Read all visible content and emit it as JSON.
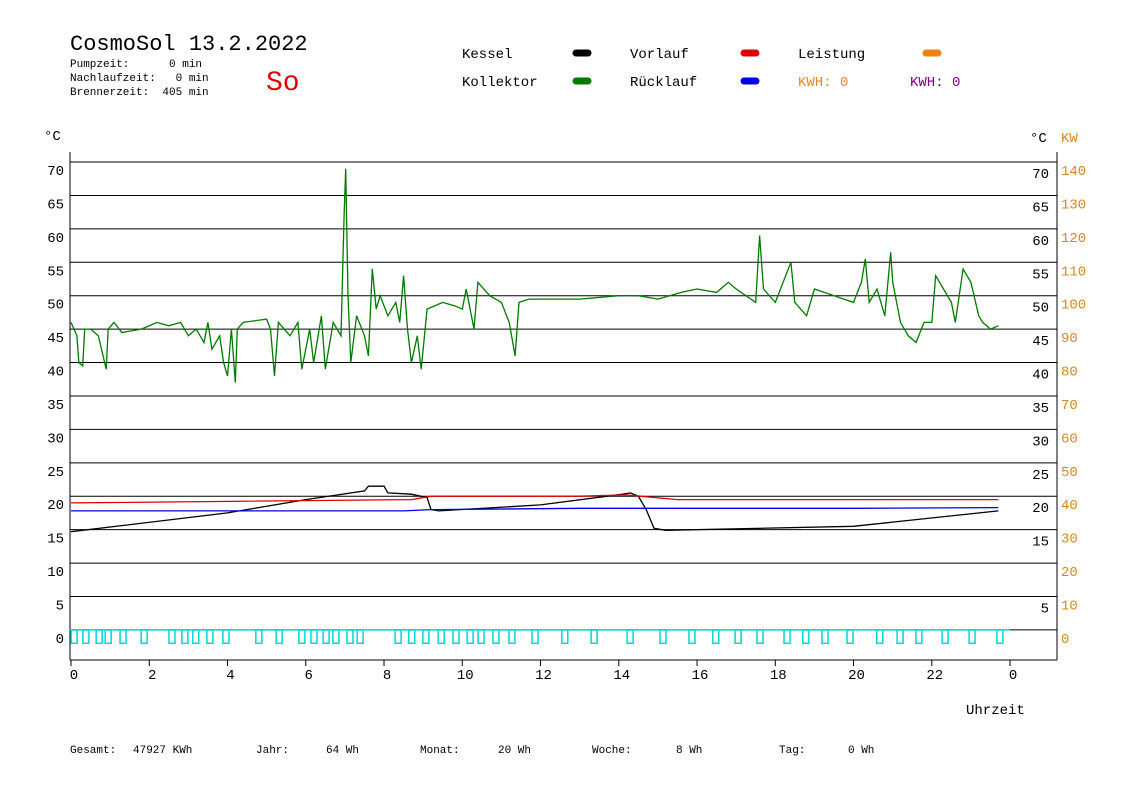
{
  "chart_data": {
    "type": "line",
    "title": "CosmoSol 13.2.2022",
    "info": [
      "Pumpzeit:      0 min",
      "Nachlaufzeit:   0 min",
      "Brennerzeit:  405 min"
    ],
    "day": "So",
    "y_label": "°C",
    "y_right_label": "°C",
    "y2_label": "KW",
    "x_label": "Uhrzeit",
    "kwh": [
      {
        "label": "KWH: 0",
        "color": "#e08a1e"
      },
      {
        "label": "KWH: 0",
        "color": "#800080"
      }
    ],
    "footer": [
      "Gesamt:",
      "47927 KWh",
      "Jahr:",
      "64 Wh",
      "Monat:",
      "20 Wh",
      "Woche:",
      "8 Wh",
      "Tag:",
      "0 Wh"
    ],
    "xlim": [
      0,
      25.2
    ],
    "xticks": [
      0,
      2,
      4,
      6,
      8,
      10,
      12,
      14,
      16,
      18,
      20,
      22,
      {
        "value": 24,
        "label": "0"
      }
    ],
    "ylim": [
      -4.5,
      71.5
    ],
    "yticks": [
      0,
      5,
      10,
      15,
      20,
      25,
      30,
      35,
      40,
      45,
      50,
      55,
      60,
      65,
      70
    ],
    "yticks_right": [
      5,
      15,
      20,
      25,
      30,
      35,
      40,
      45,
      50,
      55,
      60,
      65,
      70
    ],
    "y2lim": [
      -9,
      143
    ],
    "y2ticks": [
      0,
      10,
      20,
      30,
      40,
      50,
      60,
      70,
      80,
      90,
      100,
      110,
      120,
      130,
      140
    ],
    "grid": true,
    "series": [
      {
        "name": "Kessel",
        "color": "#000000",
        "x": [
          0,
          4,
          6,
          7.5,
          7.6,
          8,
          8.1,
          8.7,
          9.1,
          9.2,
          9.4,
          12,
          14.1,
          14.3,
          14.5,
          14.7,
          14.9,
          15.2,
          20,
          23.7
        ],
        "values": [
          14.7,
          17.5,
          19.5,
          20.8,
          21.5,
          21.5,
          20.5,
          20.3,
          19.8,
          18,
          17.8,
          18.7,
          20.3,
          20.5,
          20,
          18,
          15.2,
          14.9,
          15.5,
          17.8
        ]
      },
      {
        "name": "Kollektor",
        "color": "#007a00",
        "x": [
          0,
          0.15,
          0.2,
          0.3,
          0.35,
          0.5,
          0.7,
          0.9,
          0.95,
          1.1,
          1.3,
          1.8,
          2.2,
          2.5,
          2.8,
          3.0,
          3.2,
          3.4,
          3.5,
          3.6,
          3.8,
          3.9,
          4.0,
          4.1,
          4.2,
          4.25,
          4.4,
          5.0,
          5.1,
          5.2,
          5.3,
          5.6,
          5.8,
          5.9,
          6.1,
          6.2,
          6.4,
          6.5,
          6.7,
          6.9,
          6.98,
          7.02,
          7.08,
          7.15,
          7.3,
          7.5,
          7.6,
          7.7,
          7.8,
          7.9,
          8.1,
          8.3,
          8.4,
          8.5,
          8.6,
          8.7,
          8.85,
          8.95,
          9.1,
          9.5,
          9.8,
          10.0,
          10.1,
          10.3,
          10.4,
          10.7,
          11.0,
          11.2,
          11.35,
          11.45,
          11.7,
          12,
          13,
          14,
          14.5,
          15,
          15.3,
          15.6,
          16,
          16.5,
          16.8,
          17,
          17.5,
          17.6,
          17.7,
          18,
          18.2,
          18.4,
          18.5,
          18.8,
          19,
          19.5,
          20,
          20.2,
          20.3,
          20.4,
          20.6,
          20.8,
          20.95,
          21,
          21.2,
          21.4,
          21.6,
          21.8,
          22,
          22.1,
          22.3,
          22.5,
          22.6,
          22.8,
          23.0,
          23.2,
          23.3,
          23.5,
          23.7
        ],
        "values": [
          46,
          44,
          40,
          39.5,
          45,
          45,
          44,
          39,
          45,
          46,
          44.5,
          45,
          46,
          45.5,
          46,
          44,
          45,
          43,
          46,
          42,
          44,
          40,
          38,
          45,
          37,
          45,
          46,
          46.5,
          45,
          38,
          46,
          44,
          46,
          39,
          45,
          40,
          47,
          39,
          46,
          44,
          62,
          69,
          50,
          40,
          47,
          44,
          41,
          54,
          48,
          50,
          47,
          49,
          46,
          53,
          45,
          40,
          44,
          39,
          48,
          49,
          48.5,
          48,
          51,
          45,
          52,
          50,
          49,
          46,
          41,
          49,
          49.5,
          49.5,
          49.5,
          50,
          50,
          49.5,
          50,
          50.5,
          51,
          50.5,
          52,
          51,
          49,
          59,
          51,
          49,
          52,
          55,
          49,
          47,
          51,
          50,
          49,
          52,
          55.5,
          49,
          51,
          47,
          56.5,
          52,
          46,
          44,
          43,
          46,
          46,
          53,
          51,
          49,
          46,
          54,
          52,
          47,
          46,
          45,
          45.5
        ]
      },
      {
        "name": "Vorlauf",
        "color": "#e00000",
        "x": [
          0,
          8.7,
          9.2,
          13,
          14.2,
          15.5,
          23.7
        ],
        "values": [
          19,
          19.5,
          20,
          20,
          20.2,
          19.5,
          19.5
        ]
      },
      {
        "name": "Rücklauf",
        "color": "#0000e0",
        "x": [
          0,
          8.5,
          9.2,
          13,
          15,
          20,
          23.7
        ],
        "values": [
          17.8,
          17.8,
          18,
          18.2,
          18.2,
          18.2,
          18.3
        ]
      },
      {
        "name": "Leistung",
        "color": "#f08010",
        "axis": "y2",
        "x": [],
        "values": []
      }
    ],
    "pump": {
      "color": "#00d8d8",
      "x": [
        0.08,
        0.38,
        0.72,
        0.95,
        1.33,
        1.87,
        2.58,
        2.91,
        3.19,
        3.55,
        3.96,
        4.8,
        5.32,
        5.9,
        6.21,
        6.52,
        6.77,
        7.13,
        7.39,
        8.36,
        8.71,
        9.07,
        9.46,
        9.84,
        10.2,
        10.48,
        10.86,
        11.27,
        11.86,
        12.62,
        13.37,
        14.29,
        15.13,
        15.87,
        16.48,
        17.05,
        17.61,
        18.3,
        18.78,
        19.27,
        19.91,
        20.67,
        21.19,
        21.67,
        22.34,
        23.03,
        23.74
      ],
      "values": [
        -2,
        -2,
        -2,
        -2,
        -2,
        -2,
        -2,
        -2,
        -2,
        -2,
        -2,
        -2,
        -2,
        -2,
        -2,
        -2,
        -2,
        -2,
        -2,
        -2,
        -2,
        -2,
        -2,
        -2,
        -2,
        -2,
        -2,
        -2,
        -2,
        -2,
        -2,
        -2,
        -2,
        -2,
        -2,
        -2,
        -2,
        -2,
        -2,
        -2,
        -2,
        -2,
        -2,
        -2,
        -2,
        -2,
        -2
      ]
    }
  }
}
